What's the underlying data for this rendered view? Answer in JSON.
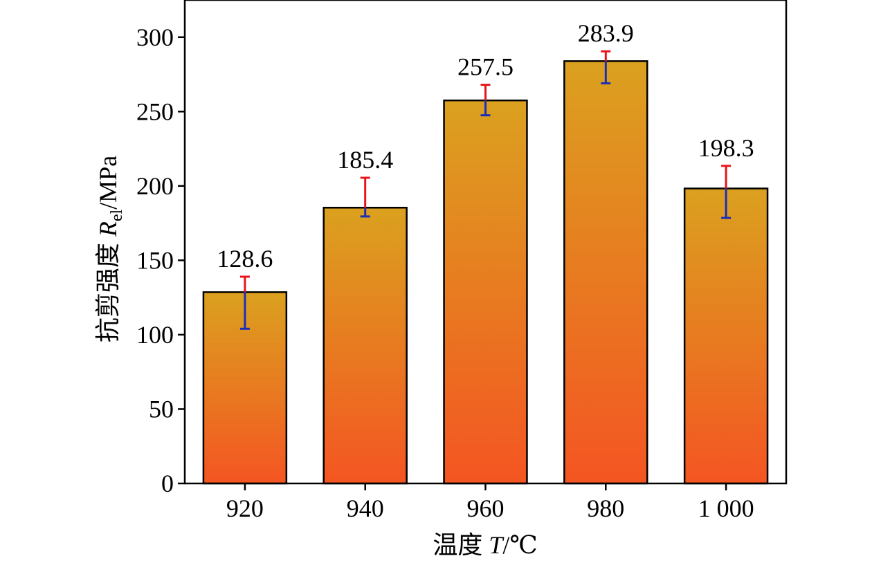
{
  "chart_data": {
    "type": "bar",
    "categories": [
      "920",
      "940",
      "960",
      "980",
      "1 000"
    ],
    "values": [
      128.6,
      185.4,
      257.5,
      283.9,
      198.3
    ],
    "error_upper": [
      139,
      205.5,
      268,
      290.5,
      213.5
    ],
    "error_lower": [
      104,
      179.5,
      247.5,
      269,
      178.5
    ],
    "data_labels": [
      "128.6",
      "185.4",
      "257.5",
      "283.9",
      "198.3"
    ],
    "xlabel_prefix": "温度 ",
    "xlabel_var": "T",
    "xlabel_unit": "/℃",
    "ylabel_prefix": "抗剪强度 ",
    "ylabel_var": "R",
    "ylabel_sub": "el",
    "ylabel_unit": "/MPa",
    "ylim": [
      0,
      325
    ],
    "yticks": [
      0,
      50,
      100,
      150,
      200,
      250,
      300
    ],
    "grid": false,
    "colors": {
      "bar_top": "#DBA11F",
      "bar_bottom": "#F45522",
      "bar_edge": "#000000",
      "error_upper": "#E8141B",
      "error_lower": "#1A2FB8"
    }
  }
}
